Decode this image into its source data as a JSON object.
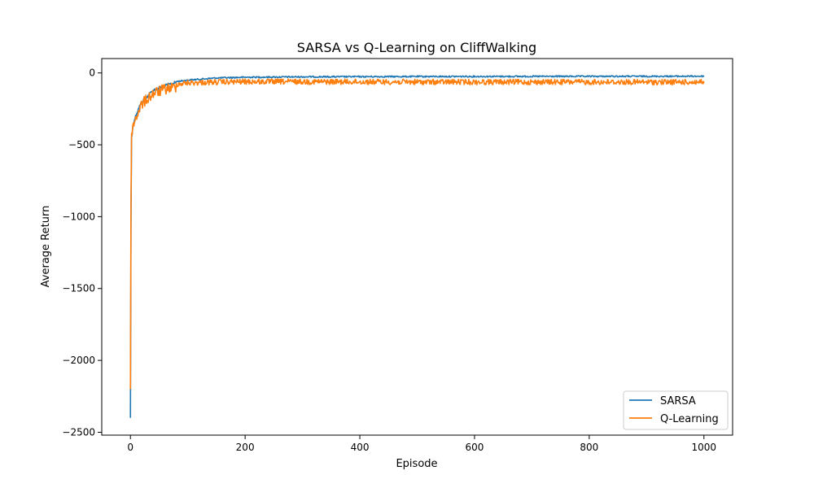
{
  "chart_data": {
    "type": "line",
    "title": "SARSA vs Q-Learning on CliffWalking",
    "xlabel": "Episode",
    "ylabel": "Average Return",
    "xlim": [
      -50,
      1050
    ],
    "ylim": [
      -2520,
      100
    ],
    "xticks": [
      0,
      200,
      400,
      600,
      800,
      1000
    ],
    "yticks": [
      0,
      -500,
      -1000,
      -1500,
      -2000,
      -2500
    ],
    "xtick_labels": [
      "0",
      "200",
      "400",
      "600",
      "800",
      "1000"
    ],
    "ytick_labels": [
      "0",
      "−500",
      "−1000",
      "−1500",
      "−2000",
      "−2500"
    ],
    "grid": false,
    "legend_position": "lower-right",
    "series": [
      {
        "name": "SARSA",
        "color": "#1f77b4",
        "noise_amp": 10,
        "points": [
          [
            0,
            -2400
          ],
          [
            1,
            -1000
          ],
          [
            2,
            -450
          ],
          [
            5,
            -340
          ],
          [
            10,
            -280
          ],
          [
            15,
            -230
          ],
          [
            20,
            -190
          ],
          [
            30,
            -150
          ],
          [
            40,
            -110
          ],
          [
            60,
            -80
          ],
          [
            80,
            -55
          ],
          [
            100,
            -45
          ],
          [
            150,
            -30
          ],
          [
            200,
            -25
          ],
          [
            300,
            -22
          ],
          [
            500,
            -20
          ],
          [
            1000,
            -18
          ]
        ]
      },
      {
        "name": "Q-Learning",
        "color": "#ff7f0e",
        "noise_amp": 38,
        "points": [
          [
            0,
            -2200
          ],
          [
            1,
            -900
          ],
          [
            2,
            -420
          ],
          [
            5,
            -320
          ],
          [
            10,
            -270
          ],
          [
            15,
            -220
          ],
          [
            20,
            -180
          ],
          [
            30,
            -140
          ],
          [
            40,
            -105
          ],
          [
            60,
            -75
          ],
          [
            80,
            -60
          ],
          [
            100,
            -50
          ],
          [
            150,
            -45
          ],
          [
            200,
            -42
          ],
          [
            300,
            -42
          ],
          [
            500,
            -44
          ],
          [
            1000,
            -45
          ]
        ]
      }
    ]
  }
}
